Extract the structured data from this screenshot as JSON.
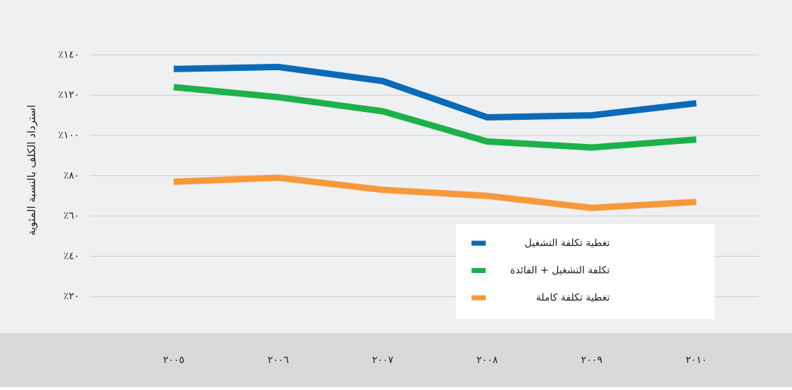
{
  "chart_data": {
    "type": "line",
    "y_label": "استرداد الكلف بالنسبة المئوية",
    "categories": [
      "٢٠٠٥",
      "٢٠٠٦",
      "٢٠٠٧",
      "٢٠٠٨",
      "٢٠٠٩",
      "٢٠١٠"
    ],
    "series": [
      {
        "name": "تغطية تكلفة التشغيل",
        "color": "#0a6ab8",
        "values": [
          133,
          134,
          127,
          109,
          110,
          116
        ]
      },
      {
        "name": "تكلفة التشغيل + الفائدة",
        "color": "#1db14b",
        "values": [
          124,
          119,
          112,
          97,
          94,
          98
        ]
      },
      {
        "name": "تغطية تكلفة كاملة",
        "color": "#f7993a",
        "values": [
          77,
          79,
          73,
          70,
          64,
          67
        ]
      }
    ],
    "ylim": [
      0,
      150
    ],
    "yticks": [
      {
        "value": 20,
        "label": "٪٢٠"
      },
      {
        "value": 40,
        "label": "٪٤٠"
      },
      {
        "value": 60,
        "label": "٪٦٠"
      },
      {
        "value": 80,
        "label": "٪٨٠"
      },
      {
        "value": 100,
        "label": "٪١٠٠"
      },
      {
        "value": 120,
        "label": "٪١٢٠"
      },
      {
        "value": 140,
        "label": "٪١٤٠"
      }
    ],
    "grid": true,
    "legend": "lower right"
  }
}
